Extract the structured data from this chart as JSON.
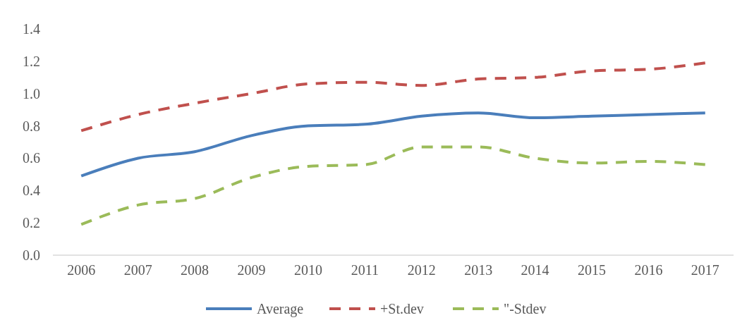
{
  "chart_data": {
    "type": "line",
    "categories": [
      "2006",
      "2007",
      "2008",
      "2009",
      "2010",
      "2011",
      "2012",
      "2013",
      "2014",
      "2015",
      "2016",
      "2017"
    ],
    "series": [
      {
        "name": "Average",
        "color": "#4a7ebb",
        "line_style": "solid",
        "values": [
          0.49,
          0.6,
          0.64,
          0.74,
          0.8,
          0.81,
          0.86,
          0.88,
          0.85,
          0.86,
          0.87,
          0.88
        ]
      },
      {
        "name": "+St.dev",
        "color": "#c0504d",
        "line_style": "dashed",
        "values": [
          0.77,
          0.87,
          0.94,
          1.0,
          1.06,
          1.07,
          1.05,
          1.09,
          1.1,
          1.14,
          1.15,
          1.19
        ]
      },
      {
        "name": "\"-Stdev",
        "color": "#9bbb59",
        "line_style": "dashed",
        "values": [
          0.19,
          0.31,
          0.35,
          0.48,
          0.55,
          0.56,
          0.67,
          0.67,
          0.6,
          0.57,
          0.58,
          0.56
        ]
      }
    ],
    "ylim": [
      0,
      1.4
    ],
    "yticks": [
      {
        "value": 0,
        "label": "0.0"
      },
      {
        "value": 0.2,
        "label": "0.2"
      },
      {
        "value": 0.4,
        "label": "0.4"
      },
      {
        "value": 0.6,
        "label": "0.6"
      },
      {
        "value": 0.8,
        "label": "0.8"
      },
      {
        "value": 1,
        "label": "1.0"
      },
      {
        "value": 1.2,
        "label": "1.2"
      },
      {
        "value": 1.4,
        "label": "1.4"
      }
    ],
    "grid": false,
    "legend": "bottom",
    "marker": "none"
  }
}
